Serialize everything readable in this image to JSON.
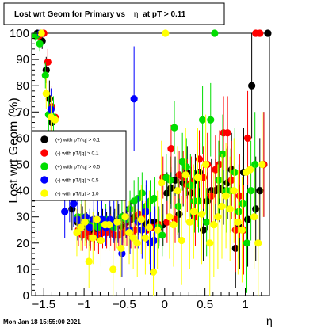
{
  "chart_data": {
    "type": "scatter",
    "title": "Lost wrt Geom for Primary vs η at pT > 0.11",
    "title_prefix": "Lost wrt Geom for Primary vs",
    "title_eta": "η",
    "title_suffix": "at pT > 0.11",
    "xlabel": "η",
    "ylabel": "Lost wrt Geom (%)",
    "xlim": [
      -1.65,
      1.3
    ],
    "ylim": [
      0,
      100
    ],
    "x_ticks": [
      -1.5,
      -1,
      -0.5,
      0,
      0.5,
      1
    ],
    "x_tick_labels": [
      "−1.5",
      "−1",
      "−0.5",
      "0",
      "0.5",
      "1"
    ],
    "y_ticks": [
      0,
      10,
      20,
      30,
      40,
      50,
      60,
      70,
      80,
      90,
      100
    ],
    "y_tick_labels": [
      "0",
      "10",
      "20",
      "30",
      "40",
      "50",
      "60",
      "70",
      "80",
      "90",
      "100"
    ],
    "grid": false,
    "legend_position": "left",
    "series": [
      {
        "name": "(+) with pT/|q| > 0.1",
        "color": "#000000",
        "points": [
          [
            -1.58,
            100,
            0
          ],
          [
            -1.52,
            97,
            3
          ],
          [
            -1.47,
            86,
            5
          ],
          [
            -1.43,
            75,
            7
          ],
          [
            -1.4,
            66,
            8
          ],
          [
            -1.15,
            33,
            8
          ],
          [
            -1.08,
            28,
            6
          ],
          [
            -1.02,
            27,
            7
          ],
          [
            -0.97,
            26,
            6
          ],
          [
            -0.92,
            24,
            6
          ],
          [
            -0.87,
            25,
            5
          ],
          [
            -0.82,
            26,
            6
          ],
          [
            -0.77,
            27,
            6
          ],
          [
            -0.72,
            27,
            5
          ],
          [
            -0.67,
            28,
            6
          ],
          [
            -0.62,
            27,
            6
          ],
          [
            -0.57,
            29,
            6
          ],
          [
            -0.52,
            26,
            6
          ],
          [
            -0.47,
            28,
            6
          ],
          [
            -0.42,
            29,
            7
          ],
          [
            -0.37,
            30,
            7
          ],
          [
            -0.32,
            30,
            7
          ],
          [
            -0.27,
            29,
            7
          ],
          [
            -0.22,
            27,
            6
          ],
          [
            -0.17,
            28,
            6
          ],
          [
            -0.12,
            28,
            7
          ],
          [
            -0.07,
            26,
            7
          ],
          [
            -0.02,
            27,
            8
          ],
          [
            0.03,
            39,
            8
          ],
          [
            0.08,
            41,
            8
          ],
          [
            0.13,
            44,
            9
          ],
          [
            0.18,
            31,
            9
          ],
          [
            0.23,
            43,
            9
          ],
          [
            0.28,
            47,
            10
          ],
          [
            0.33,
            39,
            10
          ],
          [
            0.38,
            44,
            10
          ],
          [
            0.43,
            47,
            11
          ],
          [
            0.48,
            25,
            12
          ],
          [
            0.53,
            36,
            11
          ],
          [
            0.58,
            40,
            12
          ],
          [
            0.63,
            40,
            12
          ],
          [
            0.68,
            41,
            13
          ],
          [
            0.73,
            40,
            13
          ],
          [
            0.78,
            43,
            14
          ],
          [
            0.83,
            48,
            14
          ],
          [
            0.88,
            18,
            15
          ],
          [
            0.93,
            26,
            16
          ],
          [
            0.98,
            47,
            17
          ],
          [
            1.03,
            29,
            18
          ],
          [
            1.08,
            80,
            20
          ],
          [
            1.13,
            33,
            20
          ],
          [
            1.18,
            40,
            20
          ],
          [
            1.23,
            50,
            20
          ],
          [
            1.28,
            100,
            0
          ]
        ]
      },
      {
        "name": "(-) with pT/|q| > 0.1",
        "color": "#ff0000",
        "points": [
          [
            -1.56,
            99,
            2
          ],
          [
            -1.5,
            100,
            0
          ],
          [
            -1.45,
            89,
            5
          ],
          [
            -1.4,
            72,
            8
          ],
          [
            -1.36,
            68,
            8
          ],
          [
            -1.07,
            25,
            6
          ],
          [
            -1.02,
            23,
            6
          ],
          [
            -0.97,
            24,
            6
          ],
          [
            -0.92,
            22,
            5
          ],
          [
            -0.87,
            23,
            6
          ],
          [
            -0.82,
            22,
            6
          ],
          [
            -0.77,
            24,
            6
          ],
          [
            -0.72,
            24,
            6
          ],
          [
            -0.67,
            25,
            6
          ],
          [
            -0.62,
            23,
            6
          ],
          [
            -0.57,
            23,
            6
          ],
          [
            -0.52,
            24,
            6
          ],
          [
            -0.47,
            25,
            6
          ],
          [
            -0.42,
            24,
            6
          ],
          [
            -0.37,
            25,
            7
          ],
          [
            -0.32,
            31,
            7
          ],
          [
            -0.27,
            30,
            7
          ],
          [
            -0.22,
            25,
            7
          ],
          [
            -0.17,
            26,
            7
          ],
          [
            -0.12,
            26,
            7
          ],
          [
            -0.07,
            27,
            7
          ],
          [
            -0.02,
            45,
            8
          ],
          [
            0.03,
            28,
            8
          ],
          [
            0.08,
            56,
            9
          ],
          [
            0.13,
            29,
            9
          ],
          [
            0.18,
            46,
            9
          ],
          [
            0.23,
            45,
            10
          ],
          [
            0.28,
            42,
            10
          ],
          [
            0.33,
            43,
            10
          ],
          [
            0.38,
            30,
            11
          ],
          [
            0.43,
            52,
            11
          ],
          [
            0.48,
            45,
            12
          ],
          [
            0.53,
            50,
            12
          ],
          [
            0.58,
            38,
            12
          ],
          [
            0.63,
            48,
            13
          ],
          [
            0.68,
            50,
            13
          ],
          [
            0.73,
            62,
            14
          ],
          [
            0.78,
            62,
            14
          ],
          [
            0.83,
            44,
            15
          ],
          [
            0.88,
            25,
            16
          ],
          [
            0.93,
            38,
            16
          ],
          [
            0.98,
            25,
            17
          ],
          [
            1.03,
            60,
            18
          ],
          [
            1.13,
            100,
            0
          ],
          [
            1.18,
            100,
            0
          ],
          [
            1.23,
            50,
            20
          ]
        ]
      },
      {
        "name": "(+) with pT/|q| > 0.5",
        "color": "#00dd00",
        "points": [
          [
            -1.6,
            99,
            2
          ],
          [
            -1.55,
            96,
            3
          ],
          [
            -1.48,
            84,
            5
          ],
          [
            -1.44,
            69,
            7
          ],
          [
            -1.38,
            68,
            8
          ],
          [
            -1.08,
            30,
            8
          ],
          [
            -1.03,
            30,
            7
          ],
          [
            -0.98,
            28,
            7
          ],
          [
            -0.93,
            26,
            6
          ],
          [
            -0.88,
            27,
            6
          ],
          [
            -0.83,
            26,
            6
          ],
          [
            -0.78,
            28,
            6
          ],
          [
            -0.73,
            29,
            6
          ],
          [
            -0.68,
            28,
            6
          ],
          [
            -0.63,
            26,
            6
          ],
          [
            -0.58,
            28,
            7
          ],
          [
            -0.53,
            30,
            7
          ],
          [
            -0.48,
            29,
            7
          ],
          [
            -0.43,
            33,
            7
          ],
          [
            -0.38,
            36,
            8
          ],
          [
            -0.33,
            37,
            8
          ],
          [
            -0.28,
            39,
            8
          ],
          [
            -0.23,
            34,
            8
          ],
          [
            -0.18,
            36,
            8
          ],
          [
            -0.13,
            37,
            8
          ],
          [
            -0.08,
            26,
            8
          ],
          [
            -0.03,
            23,
            8
          ],
          [
            0.02,
            45,
            9
          ],
          [
            0.07,
            44,
            9
          ],
          [
            0.12,
            64,
            10
          ],
          [
            0.17,
            34,
            10
          ],
          [
            0.22,
            51,
            11
          ],
          [
            0.27,
            49,
            11
          ],
          [
            0.32,
            42,
            12
          ],
          [
            0.37,
            36,
            12
          ],
          [
            0.42,
            36,
            12
          ],
          [
            0.47,
            67,
            13
          ],
          [
            0.52,
            28,
            13
          ],
          [
            0.57,
            67,
            14
          ],
          [
            0.62,
            100,
            0
          ],
          [
            0.67,
            44,
            15
          ],
          [
            0.72,
            54,
            15
          ],
          [
            0.77,
            40,
            16
          ],
          [
            0.82,
            40,
            16
          ],
          [
            0.87,
            47,
            17
          ],
          [
            0.92,
            32,
            18
          ],
          [
            0.97,
            35,
            18
          ],
          [
            1.02,
            20,
            19
          ],
          [
            1.07,
            40,
            19
          ],
          [
            1.12,
            50,
            20
          ]
        ]
      },
      {
        "name": "(-) with pT/|q| > 0.5",
        "color": "#0000ff",
        "points": [
          [
            -1.54,
            100,
            0
          ],
          [
            -1.41,
            71,
            8
          ],
          [
            -1.24,
            32,
            10
          ],
          [
            -1.18,
            38,
            10
          ],
          [
            -1.13,
            35,
            9
          ],
          [
            -1.08,
            29,
            8
          ],
          [
            -1.03,
            28,
            7
          ],
          [
            -0.98,
            30,
            8
          ],
          [
            -0.93,
            26,
            7
          ],
          [
            -0.88,
            29,
            7
          ],
          [
            -0.83,
            29,
            7
          ],
          [
            -0.78,
            29,
            7
          ],
          [
            -0.73,
            26,
            7
          ],
          [
            -0.68,
            29,
            7
          ],
          [
            -0.63,
            28,
            8
          ],
          [
            -0.58,
            28,
            8
          ],
          [
            -0.53,
            16,
            9
          ],
          [
            -0.48,
            30,
            8
          ],
          [
            -0.43,
            25,
            9
          ],
          [
            -0.38,
            75,
            20
          ],
          [
            -0.33,
            28,
            10
          ],
          [
            -0.28,
            25,
            11
          ],
          [
            -0.23,
            32,
            12
          ],
          [
            -0.18,
            20,
            12
          ],
          [
            -0.13,
            21,
            13
          ]
        ]
      },
      {
        "name": "(-) with pT/|q| > 1.0",
        "color": "#ffff00",
        "points": [
          [
            -1.53,
            100,
            0
          ],
          [
            -1.47,
            77,
            6
          ],
          [
            -1.41,
            68,
            8
          ],
          [
            -1.36,
            67,
            8
          ],
          [
            -1.09,
            24,
            9
          ],
          [
            -1.04,
            26,
            9
          ],
          [
            -0.99,
            28,
            9
          ],
          [
            -0.94,
            13,
            10
          ],
          [
            -0.89,
            22,
            10
          ],
          [
            -0.84,
            29,
            10
          ],
          [
            -0.79,
            21,
            10
          ],
          [
            -0.74,
            27,
            10
          ],
          [
            -0.69,
            27,
            10
          ],
          [
            -0.64,
            10,
            11
          ],
          [
            -0.59,
            28,
            10
          ],
          [
            -0.54,
            18,
            11
          ],
          [
            -0.49,
            30,
            11
          ],
          [
            -0.44,
            24,
            12
          ],
          [
            -0.39,
            22,
            12
          ],
          [
            -0.34,
            20,
            13
          ],
          [
            -0.29,
            29,
            13
          ],
          [
            -0.24,
            22,
            14
          ],
          [
            -0.19,
            26,
            14
          ],
          [
            -0.14,
            9,
            15
          ],
          [
            -0.09,
            25,
            15
          ],
          [
            -0.04,
            43,
            16
          ],
          [
            0.01,
            100,
            0
          ],
          [
            0.06,
            30,
            16
          ],
          [
            0.11,
            27,
            16
          ],
          [
            0.16,
            40,
            17
          ],
          [
            0.21,
            21,
            17
          ],
          [
            0.26,
            46,
            18
          ],
          [
            0.31,
            28,
            18
          ],
          [
            0.36,
            32,
            18
          ],
          [
            0.41,
            45,
            19
          ],
          [
            0.46,
            31,
            19
          ],
          [
            0.51,
            50,
            19
          ],
          [
            0.56,
            20,
            20
          ],
          [
            0.61,
            27,
            20
          ],
          [
            0.66,
            30,
            20
          ],
          [
            0.71,
            34,
            20
          ],
          [
            0.76,
            38,
            20
          ],
          [
            0.81,
            33,
            20
          ],
          [
            0.86,
            40,
            20
          ],
          [
            0.91,
            28,
            20
          ],
          [
            0.96,
            25,
            20
          ],
          [
            1.01,
            47,
            20
          ],
          [
            1.06,
            48,
            20
          ],
          [
            1.11,
            30,
            20
          ],
          [
            1.16,
            20,
            20
          ],
          [
            1.21,
            50,
            20
          ]
        ]
      }
    ]
  },
  "footer": {
    "timestamp": "Mon Jan 18 15:55:00 2021"
  }
}
